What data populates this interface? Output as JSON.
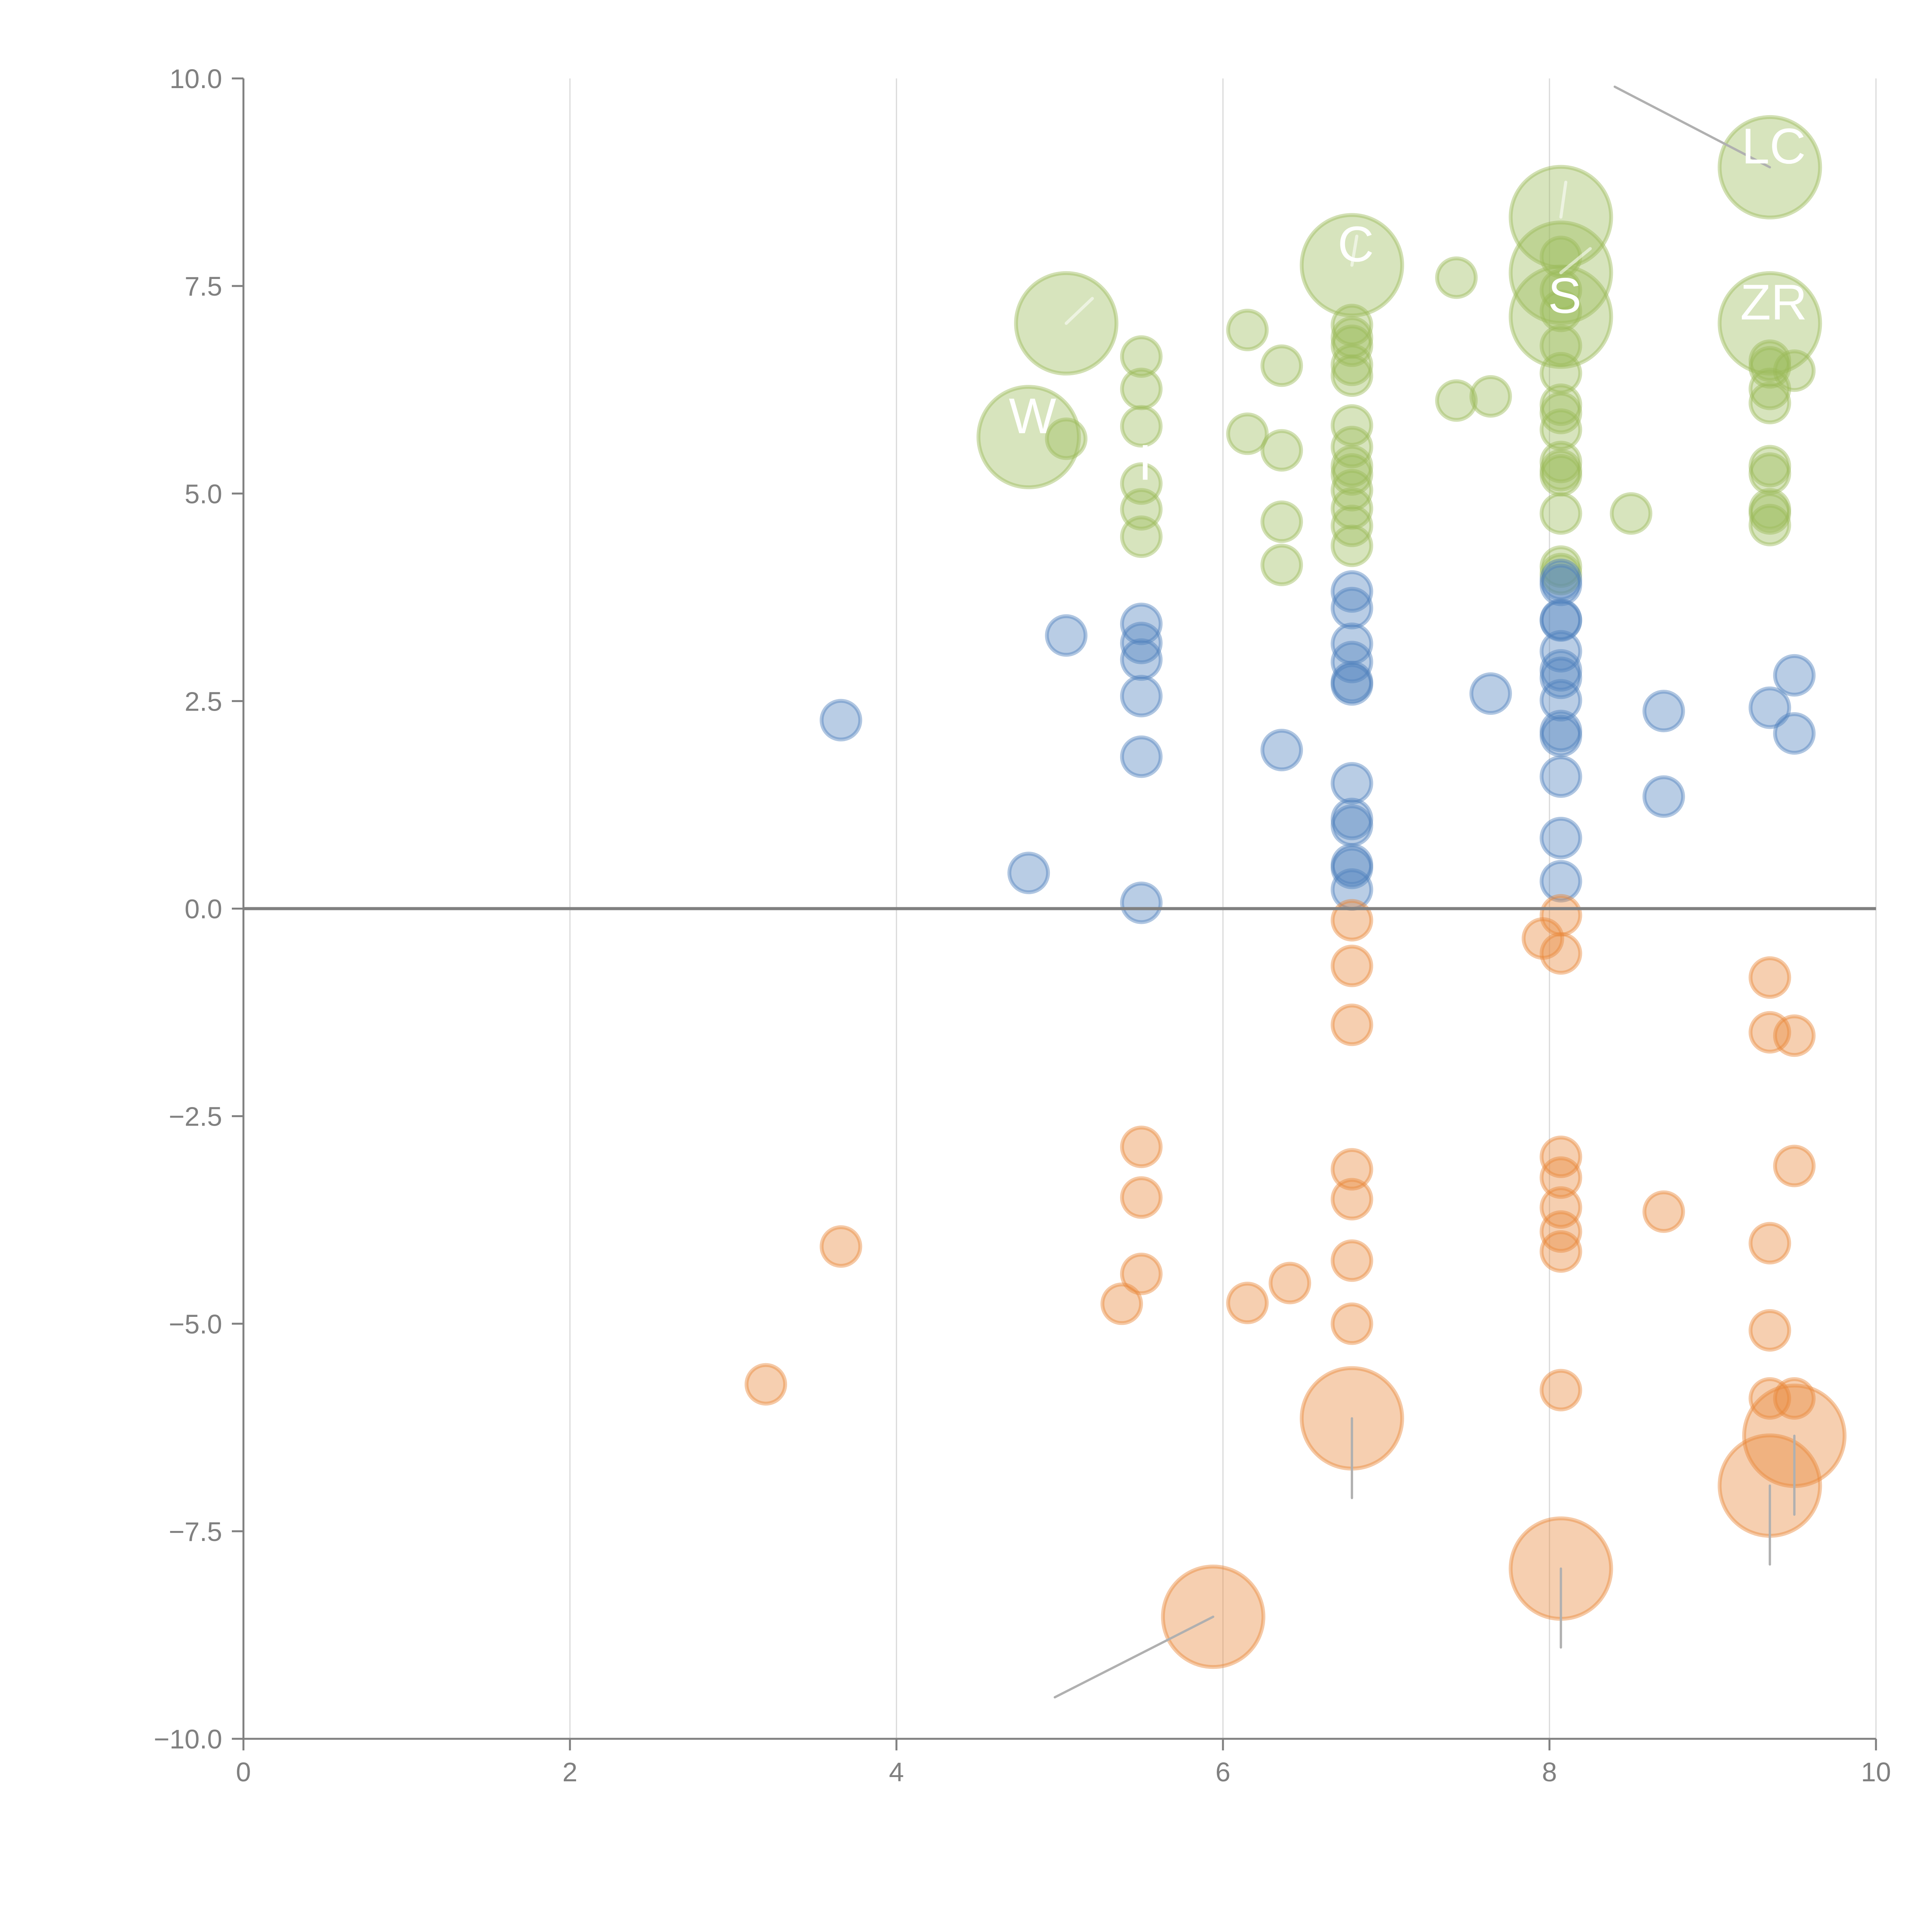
{
  "chart_data": {
    "type": "scatter",
    "variant": "bubble",
    "title": "",
    "xlabel": "",
    "ylabel": "",
    "xlim": [
      0,
      10
    ],
    "ylim": [
      -10,
      10
    ],
    "x_ticks": [
      "0",
      "2",
      "4",
      "6",
      "8",
      "10"
    ],
    "x_tick_values": [
      0,
      2,
      4,
      6,
      8,
      10
    ],
    "y_ticks": [
      "10.0",
      "7.5",
      "5.0",
      "2.5",
      "0.0",
      "−2.5",
      "−5.0",
      "−7.5",
      "−10.0"
    ],
    "y_tick_values": [
      10,
      7.5,
      5,
      2.5,
      0,
      -2.5,
      -5,
      -7.5,
      -10
    ],
    "grid": "vertical",
    "legend": "none",
    "series": [
      {
        "name": "green",
        "color": "#9bbb59",
        "points": [
          [
            5.04,
            7.05,
            2
          ],
          [
            4.81,
            5.68,
            2
          ],
          [
            5.04,
            5.66,
            1
          ],
          [
            5.5,
            6.65,
            1
          ],
          [
            5.5,
            6.26,
            1
          ],
          [
            5.5,
            5.81,
            1
          ],
          [
            5.5,
            5.12,
            1
          ],
          [
            5.5,
            4.81,
            1
          ],
          [
            5.5,
            4.48,
            1
          ],
          [
            6.15,
            6.97,
            1
          ],
          [
            6.15,
            5.72,
            1
          ],
          [
            6.36,
            6.54,
            1
          ],
          [
            6.36,
            5.52,
            1
          ],
          [
            6.36,
            4.66,
            1
          ],
          [
            6.36,
            4.14,
            1
          ],
          [
            6.79,
            7.75,
            2
          ],
          [
            6.79,
            7.03,
            1
          ],
          [
            6.79,
            6.88,
            1
          ],
          [
            6.79,
            6.78,
            1
          ],
          [
            6.79,
            6.55,
            1
          ],
          [
            6.79,
            6.42,
            1
          ],
          [
            6.79,
            5.82,
            1
          ],
          [
            6.79,
            5.56,
            1
          ],
          [
            6.79,
            5.33,
            1
          ],
          [
            6.79,
            5.23,
            1
          ],
          [
            6.79,
            5.04,
            1
          ],
          [
            6.79,
            4.82,
            1
          ],
          [
            6.79,
            4.61,
            1
          ],
          [
            6.79,
            4.37,
            1
          ],
          [
            7.43,
            7.6,
            1
          ],
          [
            7.43,
            6.12,
            1
          ],
          [
            7.64,
            6.17,
            1
          ],
          [
            8.07,
            8.33,
            2
          ],
          [
            8.07,
            7.66,
            2
          ],
          [
            8.07,
            7.13,
            2
          ],
          [
            8.07,
            7.85,
            1
          ],
          [
            8.07,
            7.45,
            1
          ],
          [
            8.07,
            7.2,
            1
          ],
          [
            8.07,
            6.78,
            1
          ],
          [
            8.07,
            6.45,
            1
          ],
          [
            8.07,
            6.07,
            1
          ],
          [
            8.07,
            5.97,
            1
          ],
          [
            8.07,
            5.77,
            1
          ],
          [
            8.07,
            5.38,
            1
          ],
          [
            8.07,
            5.28,
            1
          ],
          [
            8.07,
            5.22,
            1
          ],
          [
            8.07,
            4.76,
            1
          ],
          [
            8.07,
            4.12,
            1
          ],
          [
            8.07,
            4.03,
            1
          ],
          [
            8.5,
            4.76,
            1
          ],
          [
            9.35,
            8.93,
            2
          ],
          [
            9.35,
            7.05,
            2
          ],
          [
            9.35,
            6.6,
            1
          ],
          [
            9.35,
            6.52,
            1
          ],
          [
            9.35,
            6.26,
            1
          ],
          [
            9.35,
            6.09,
            1
          ],
          [
            9.5,
            6.48,
            1
          ],
          [
            9.35,
            5.33,
            1
          ],
          [
            9.35,
            5.24,
            1
          ],
          [
            9.35,
            4.81,
            1
          ],
          [
            9.35,
            4.76,
            1
          ],
          [
            9.35,
            4.62,
            1
          ]
        ]
      },
      {
        "name": "blue",
        "color": "#4f81bd",
        "points": [
          [
            3.66,
            2.27,
            1
          ],
          [
            4.81,
            0.43,
            1
          ],
          [
            5.04,
            3.29,
            1
          ],
          [
            5.5,
            3.43,
            1
          ],
          [
            5.5,
            3.2,
            1
          ],
          [
            5.5,
            3.0,
            1
          ],
          [
            5.5,
            2.56,
            1
          ],
          [
            5.5,
            1.83,
            1
          ],
          [
            5.5,
            0.07,
            1
          ],
          [
            6.36,
            1.91,
            1
          ],
          [
            6.79,
            3.82,
            1
          ],
          [
            6.79,
            3.62,
            1
          ],
          [
            6.79,
            3.19,
            1
          ],
          [
            6.79,
            2.97,
            1
          ],
          [
            6.79,
            2.73,
            1
          ],
          [
            6.79,
            2.7,
            1
          ],
          [
            6.79,
            1.51,
            1
          ],
          [
            6.79,
            1.08,
            1
          ],
          [
            6.79,
            1.0,
            1
          ],
          [
            6.79,
            0.53,
            1
          ],
          [
            6.79,
            0.49,
            1
          ],
          [
            6.79,
            0.23,
            1
          ],
          [
            7.64,
            2.59,
            1
          ],
          [
            8.07,
            3.96,
            1
          ],
          [
            8.07,
            3.9,
            1
          ],
          [
            8.07,
            3.48,
            1
          ],
          [
            8.07,
            3.47,
            1
          ],
          [
            8.07,
            3.1,
            1
          ],
          [
            8.07,
            2.87,
            1
          ],
          [
            8.07,
            2.78,
            1
          ],
          [
            8.07,
            2.51,
            1
          ],
          [
            8.07,
            2.14,
            1
          ],
          [
            8.07,
            2.08,
            1
          ],
          [
            8.07,
            1.59,
            1
          ],
          [
            8.07,
            0.85,
            1
          ],
          [
            8.07,
            0.33,
            1
          ],
          [
            8.7,
            2.38,
            1
          ],
          [
            8.7,
            1.35,
            1
          ],
          [
            9.35,
            2.42,
            1
          ],
          [
            9.5,
            2.81,
            1
          ],
          [
            9.5,
            2.11,
            1
          ]
        ]
      },
      {
        "name": "orange",
        "color": "#e8883a",
        "points": [
          [
            3.2,
            -5.73,
            1
          ],
          [
            3.66,
            -4.07,
            1
          ],
          [
            5.38,
            -4.76,
            1
          ],
          [
            5.5,
            -2.87,
            1
          ],
          [
            5.5,
            -3.48,
            1
          ],
          [
            5.5,
            -4.4,
            1
          ],
          [
            5.94,
            -8.53,
            2
          ],
          [
            6.15,
            -4.75,
            1
          ],
          [
            6.41,
            -4.51,
            1
          ],
          [
            6.79,
            -0.14,
            1
          ],
          [
            6.79,
            -0.69,
            1
          ],
          [
            6.79,
            -1.4,
            1
          ],
          [
            6.79,
            -3.14,
            1
          ],
          [
            6.79,
            -3.5,
            1
          ],
          [
            6.79,
            -4.24,
            1
          ],
          [
            6.79,
            -5.0,
            1
          ],
          [
            6.79,
            -6.14,
            2
          ],
          [
            7.96,
            -0.36,
            1
          ],
          [
            8.07,
            -0.08,
            1
          ],
          [
            8.07,
            -0.54,
            1
          ],
          [
            8.07,
            -2.99,
            1
          ],
          [
            8.07,
            -3.24,
            1
          ],
          [
            8.07,
            -3.6,
            1
          ],
          [
            8.07,
            -3.89,
            1
          ],
          [
            8.07,
            -4.13,
            1
          ],
          [
            8.07,
            -5.8,
            1
          ],
          [
            8.07,
            -7.95,
            2
          ],
          [
            8.7,
            -3.65,
            1
          ],
          [
            9.35,
            -0.83,
            1
          ],
          [
            9.35,
            -1.49,
            1
          ],
          [
            9.5,
            -1.53,
            1
          ],
          [
            9.5,
            -3.1,
            1
          ],
          [
            9.35,
            -4.03,
            1
          ],
          [
            9.35,
            -5.08,
            1
          ],
          [
            9.35,
            -5.9,
            1
          ],
          [
            9.5,
            -5.9,
            1
          ],
          [
            9.5,
            -6.35,
            2
          ],
          [
            9.35,
            -6.95,
            2
          ]
        ]
      }
    ],
    "annotations": [
      {
        "text": "LC",
        "x": 9.35,
        "y": 8.93
      },
      {
        "text": "S",
        "x": 8.07,
        "y": 7.13
      },
      {
        "text": "ZR",
        "x": 9.35,
        "y": 7.05
      },
      {
        "text": "C",
        "x": 6.79,
        "y": 7.75
      },
      {
        "text": "W",
        "x": 4.81,
        "y": 5.68
      },
      {
        "text": "I",
        "x": 5.5,
        "y": 5.12
      }
    ]
  }
}
